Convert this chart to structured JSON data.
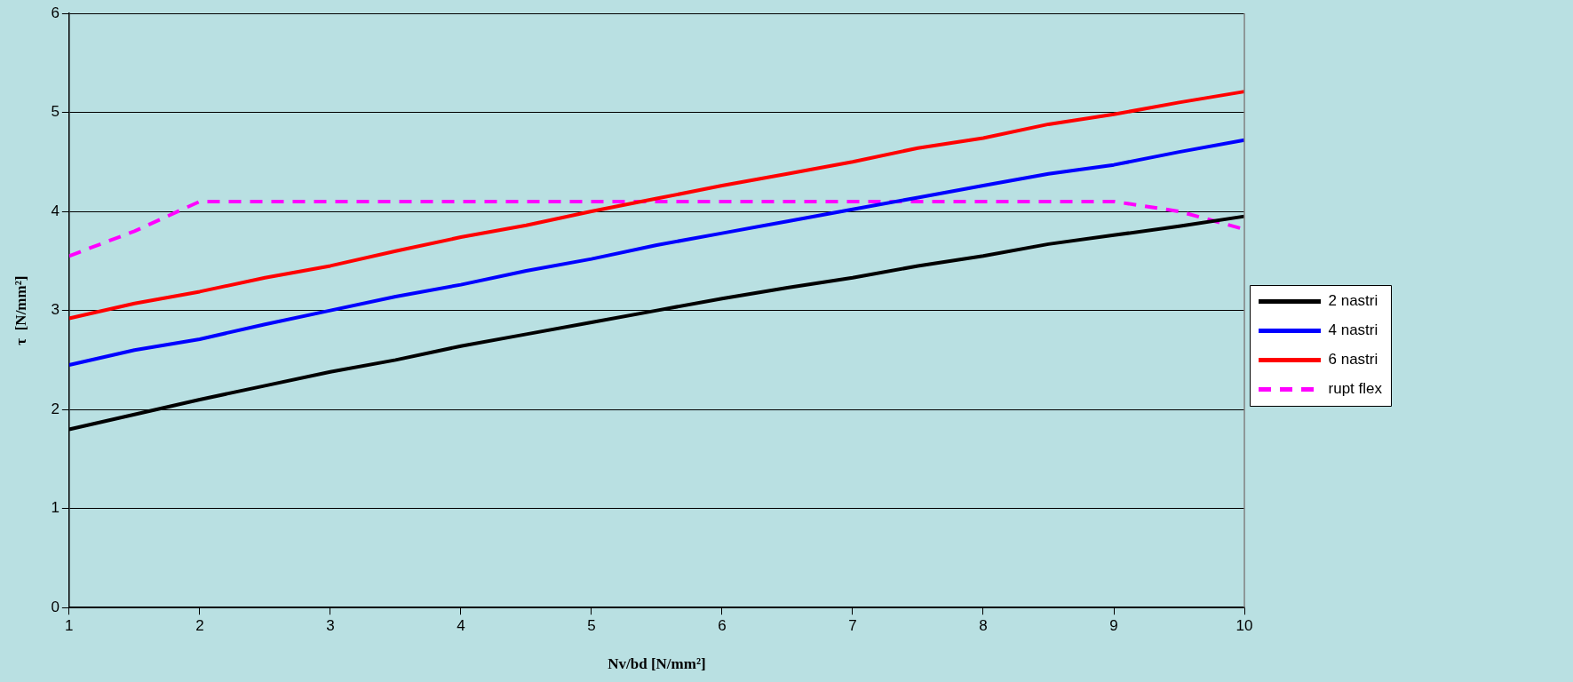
{
  "chart_data": {
    "type": "line",
    "xlabel": "Nv/bd [N/mm²]",
    "ylabel": "τ  [N/mm²]",
    "x": [
      1,
      1.5,
      2,
      2.5,
      3,
      3.5,
      4,
      4.5,
      5,
      5.5,
      6,
      6.5,
      7,
      7.5,
      8,
      8.5,
      9,
      9.5,
      10
    ],
    "series": [
      {
        "name": "2 nastri",
        "color": "#000000",
        "values": [
          1.8,
          1.95,
          2.1,
          2.24,
          2.38,
          2.5,
          2.64,
          2.76,
          2.88,
          3.0,
          3.12,
          3.23,
          3.33,
          3.45,
          3.55,
          3.67,
          3.76,
          3.85,
          3.95
        ]
      },
      {
        "name": "4 nastri",
        "color": "#0000ff",
        "values": [
          2.45,
          2.6,
          2.71,
          2.86,
          3.0,
          3.14,
          3.26,
          3.4,
          3.52,
          3.66,
          3.78,
          3.9,
          4.02,
          4.14,
          4.26,
          4.38,
          4.47,
          4.6,
          4.72
        ]
      },
      {
        "name": "6 nastri",
        "color": "#ff0000",
        "values": [
          2.92,
          3.07,
          3.19,
          3.33,
          3.45,
          3.6,
          3.74,
          3.86,
          4.0,
          4.13,
          4.26,
          4.38,
          4.5,
          4.64,
          4.74,
          4.88,
          4.98,
          5.1,
          5.21
        ]
      },
      {
        "name": "rupt flex",
        "color": "#ff00ff",
        "line_style": "dashed",
        "values": [
          3.55,
          3.8,
          4.1,
          4.1,
          4.1,
          4.1,
          4.1,
          4.1,
          4.1,
          4.1,
          4.1,
          4.1,
          4.1,
          4.1,
          4.1,
          4.1,
          4.1,
          4.0,
          3.82
        ]
      }
    ],
    "xlim": [
      1,
      10
    ],
    "xticks": [
      1,
      2,
      3,
      4,
      5,
      6,
      7,
      8,
      9,
      10
    ],
    "ylim": [
      0,
      6
    ],
    "yticks": [
      0,
      1,
      2,
      3,
      4,
      5,
      6
    ],
    "grid": "y",
    "legend": "right",
    "marker": "none",
    "line_style": "solid"
  }
}
